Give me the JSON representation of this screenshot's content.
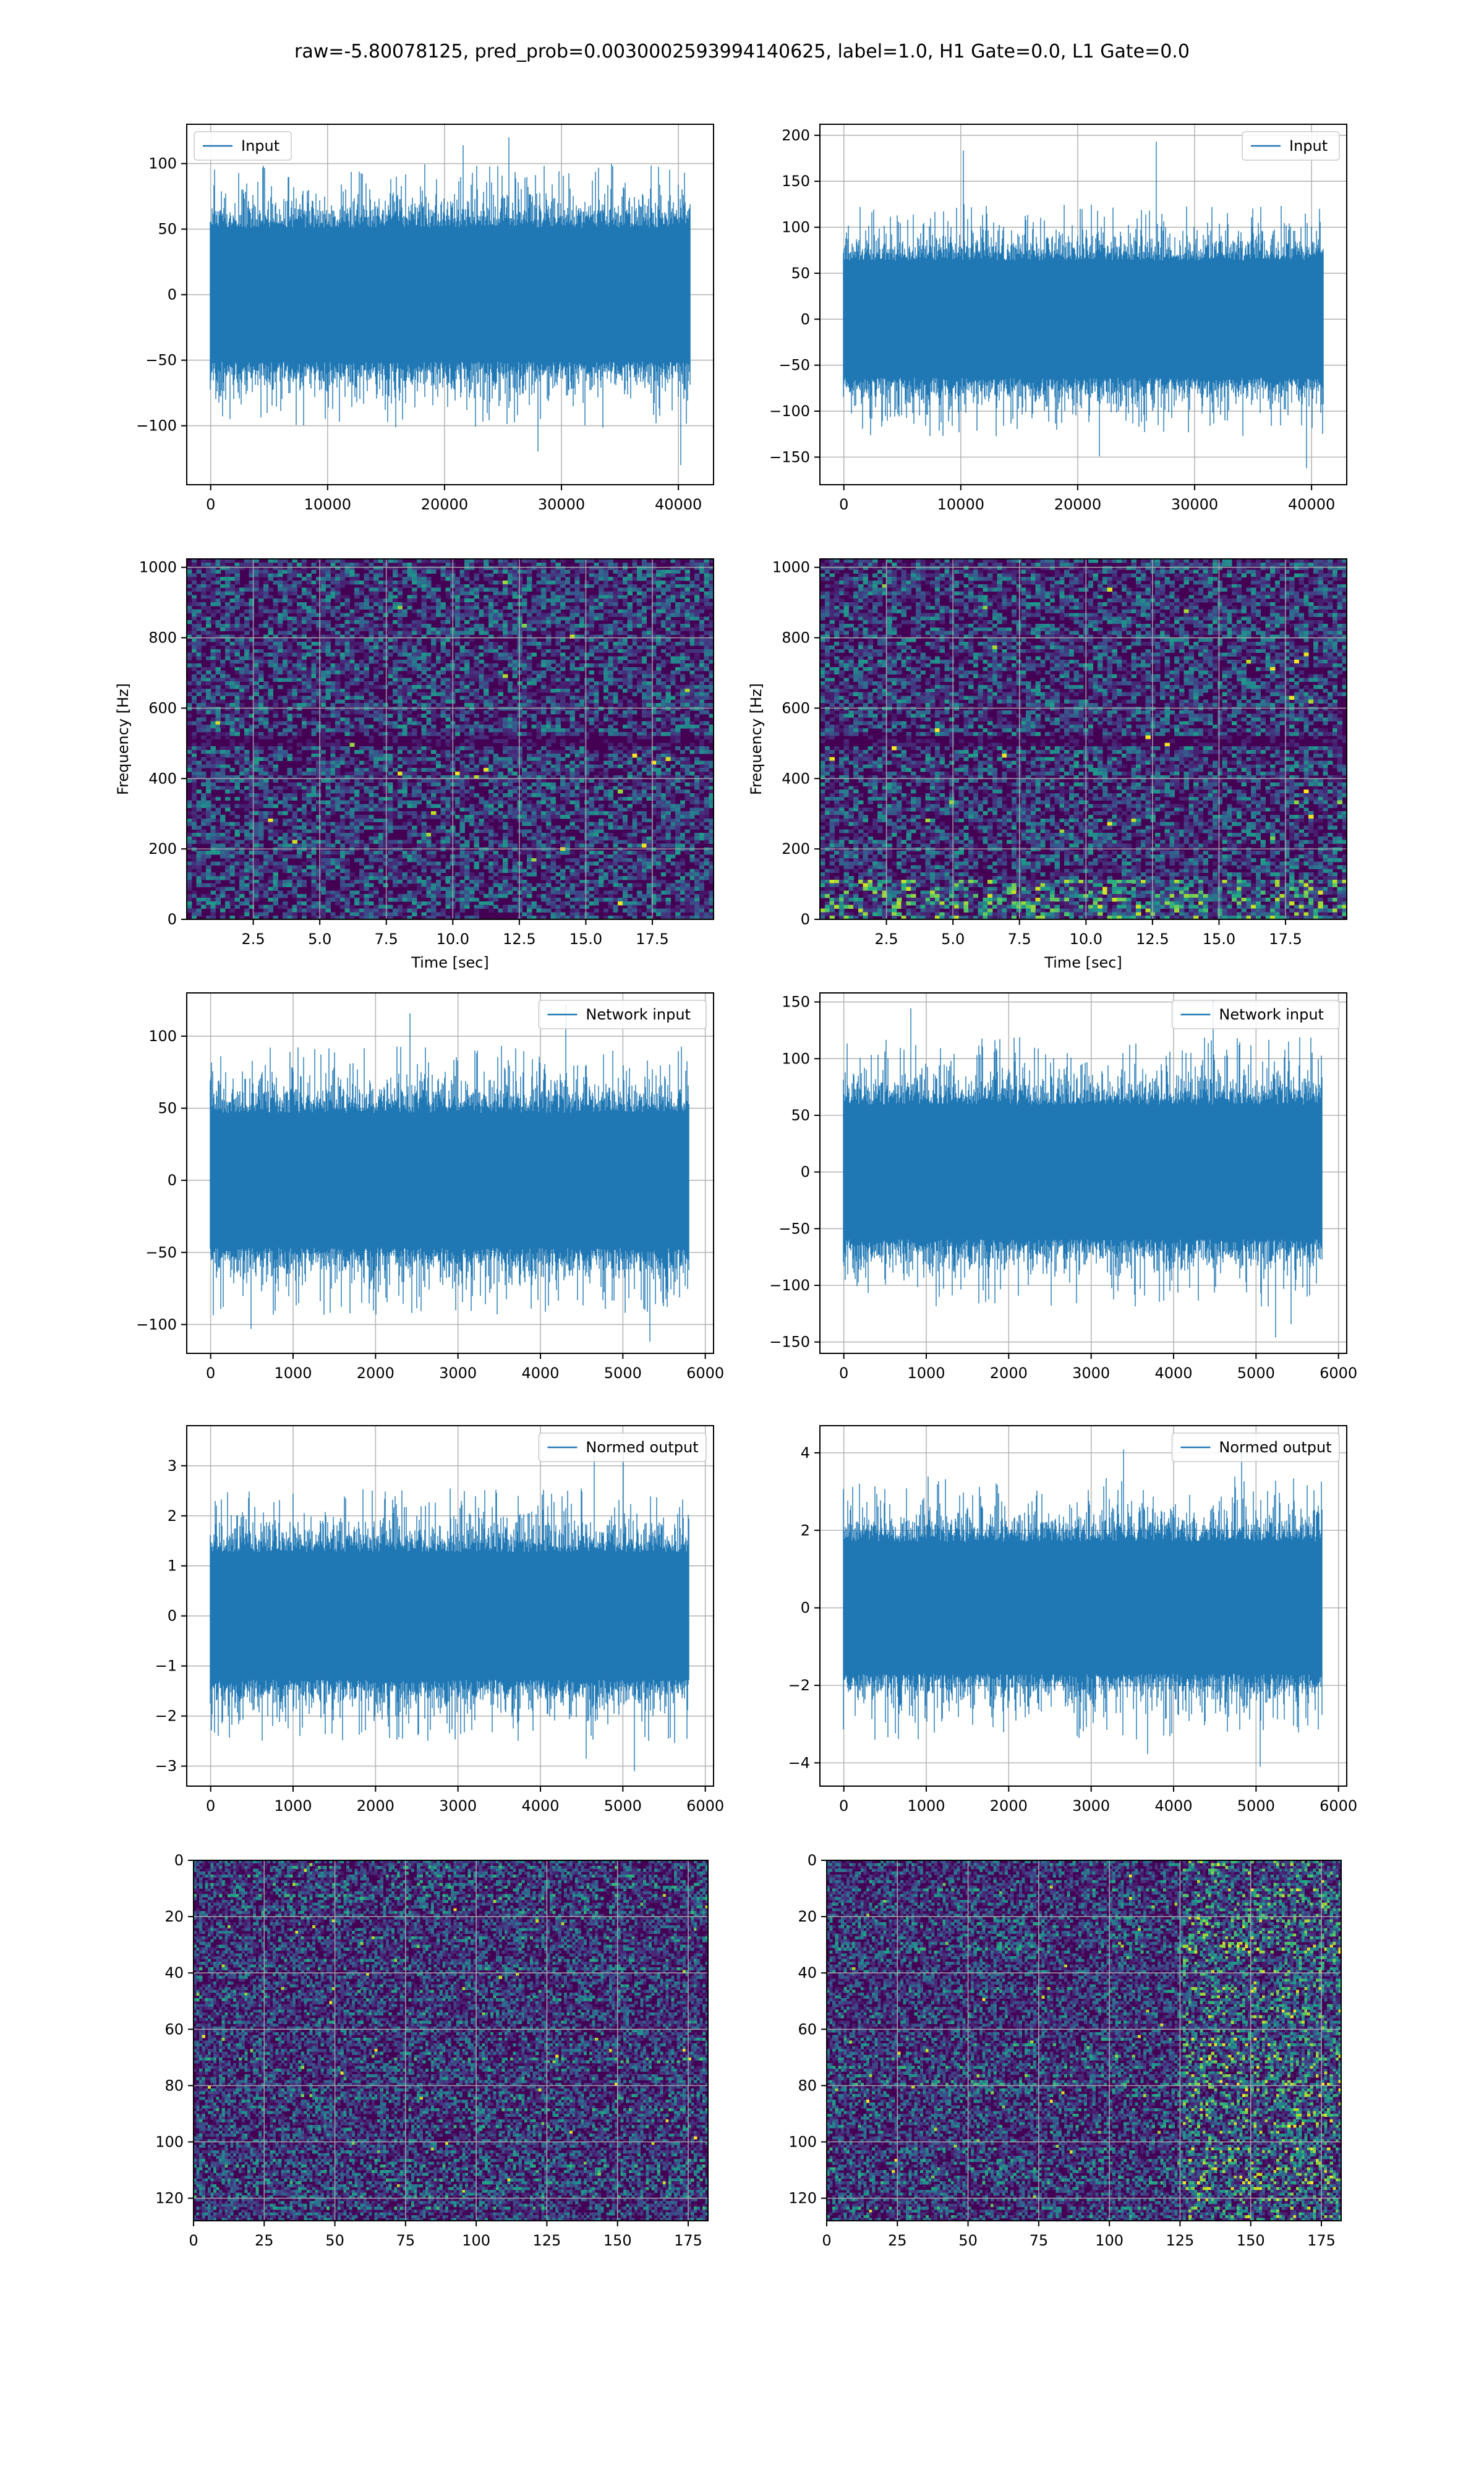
{
  "figure": {
    "suptitle": "raw=-5.80078125, pred_prob=0.0030002593994140625, label=1.0, H1 Gate=0.0, L1 Gate=0.0",
    "colors": {
      "line": "#1f77b4",
      "grid": "#b0b0b0",
      "viridis_low": "#440154",
      "viridis_high": "#fde725"
    }
  },
  "chart_data": [
    {
      "id": "input-h1",
      "type": "line",
      "legend": "Input",
      "legend_loc": "upper left",
      "xlim": [
        -2048,
        43008
      ],
      "ylim": [
        -145,
        130
      ],
      "xticks": [
        0,
        10000,
        20000,
        30000,
        40000
      ],
      "yticks": [
        -100,
        -50,
        0,
        50,
        100
      ],
      "x_range": [
        0,
        40960
      ],
      "envelope": {
        "typical": 60,
        "max_peak": 120,
        "min_peak": -130
      }
    },
    {
      "id": "input-l1",
      "type": "line",
      "legend": "Input",
      "legend_loc": "upper right",
      "xlim": [
        -2048,
        43008
      ],
      "ylim": [
        -180,
        212
      ],
      "xticks": [
        0,
        10000,
        20000,
        30000,
        40000
      ],
      "yticks": [
        -150,
        -100,
        -50,
        0,
        50,
        100,
        150,
        200
      ],
      "x_range": [
        0,
        40960
      ],
      "envelope": {
        "typical": 75,
        "max_peak": 193,
        "min_peak": -162
      }
    },
    {
      "id": "spec-h1",
      "type": "heatmap",
      "xlabel": "Time [sec]",
      "ylabel": "Frequency [Hz]",
      "xlim": [
        0,
        19.8
      ],
      "ylim": [
        0,
        1024
      ],
      "xticks": [
        2.5,
        5.0,
        7.5,
        10.0,
        12.5,
        15.0,
        17.5
      ],
      "xticklabels": [
        "2.5",
        "5.0",
        "7.5",
        "10.0",
        "12.5",
        "15.0",
        "17.5"
      ],
      "yticks": [
        0,
        200,
        400,
        600,
        800,
        1000
      ],
      "features": {
        "dark_band_hz": 500,
        "bright_low_freq": false
      }
    },
    {
      "id": "spec-l1",
      "type": "heatmap",
      "xlabel": "Time [sec]",
      "ylabel": "Frequency [Hz]",
      "xlim": [
        0,
        19.8
      ],
      "ylim": [
        0,
        1024
      ],
      "xticks": [
        2.5,
        5.0,
        7.5,
        10.0,
        12.5,
        15.0,
        17.5
      ],
      "xticklabels": [
        "2.5",
        "5.0",
        "7.5",
        "10.0",
        "12.5",
        "15.0",
        "17.5"
      ],
      "yticks": [
        0,
        200,
        400,
        600,
        800,
        1000
      ],
      "features": {
        "dark_band_hz": 500,
        "bright_low_freq": true
      }
    },
    {
      "id": "netin-h1",
      "type": "line",
      "legend": "Network input",
      "legend_loc": "upper right",
      "xlim": [
        -290,
        6100
      ],
      "ylim": [
        -120,
        130
      ],
      "xticks": [
        0,
        1000,
        2000,
        3000,
        4000,
        5000,
        6000
      ],
      "yticks": [
        -100,
        -50,
        0,
        50,
        100
      ],
      "x_range": [
        0,
        5800
      ],
      "envelope": {
        "typical": 55,
        "max_peak": 122,
        "min_peak": -112
      }
    },
    {
      "id": "netin-l1",
      "type": "line",
      "legend": "Network input",
      "legend_loc": "upper right",
      "xlim": [
        -290,
        6100
      ],
      "ylim": [
        -160,
        158
      ],
      "xticks": [
        0,
        1000,
        2000,
        3000,
        4000,
        5000,
        6000
      ],
      "yticks": [
        -150,
        -100,
        -50,
        0,
        50,
        100,
        150
      ],
      "x_range": [
        0,
        5800
      ],
      "envelope": {
        "typical": 70,
        "max_peak": 152,
        "min_peak": -146
      }
    },
    {
      "id": "normed-h1",
      "type": "line",
      "legend": "Normed output",
      "legend_loc": "upper right",
      "xlim": [
        -290,
        6100
      ],
      "ylim": [
        -3.4,
        3.8
      ],
      "xticks": [
        0,
        1000,
        2000,
        3000,
        4000,
        5000,
        6000
      ],
      "yticks": [
        -3,
        -2,
        -1,
        0,
        1,
        2,
        3
      ],
      "x_range": [
        0,
        5800
      ],
      "envelope": {
        "typical": 1.5,
        "max_peak": 3.45,
        "min_peak": -3.1
      }
    },
    {
      "id": "normed-l1",
      "type": "line",
      "legend": "Normed output",
      "legend_loc": "upper right",
      "xlim": [
        -290,
        6100
      ],
      "ylim": [
        -4.6,
        4.7
      ],
      "xticks": [
        0,
        1000,
        2000,
        3000,
        4000,
        5000,
        6000
      ],
      "yticks": [
        -4,
        -2,
        0,
        2,
        4
      ],
      "x_range": [
        0,
        5800
      ],
      "envelope": {
        "typical": 2.0,
        "max_peak": 4.3,
        "min_peak": -4.1
      }
    },
    {
      "id": "img-h1",
      "type": "heatmap",
      "xlim": [
        0,
        182
      ],
      "ylim_inverted": [
        128,
        0
      ],
      "xticks": [
        0,
        25,
        50,
        75,
        100,
        125,
        150,
        175
      ],
      "yticks": [
        0,
        20,
        40,
        60,
        80,
        100,
        120
      ],
      "features": {
        "bright_right_region": false
      }
    },
    {
      "id": "img-l1",
      "type": "heatmap",
      "xlim": [
        0,
        182
      ],
      "ylim_inverted": [
        128,
        0
      ],
      "xticks": [
        0,
        25,
        50,
        75,
        100,
        125,
        150,
        175
      ],
      "yticks": [
        0,
        20,
        40,
        60,
        80,
        100,
        120
      ],
      "features": {
        "bright_right_region": true
      }
    }
  ]
}
